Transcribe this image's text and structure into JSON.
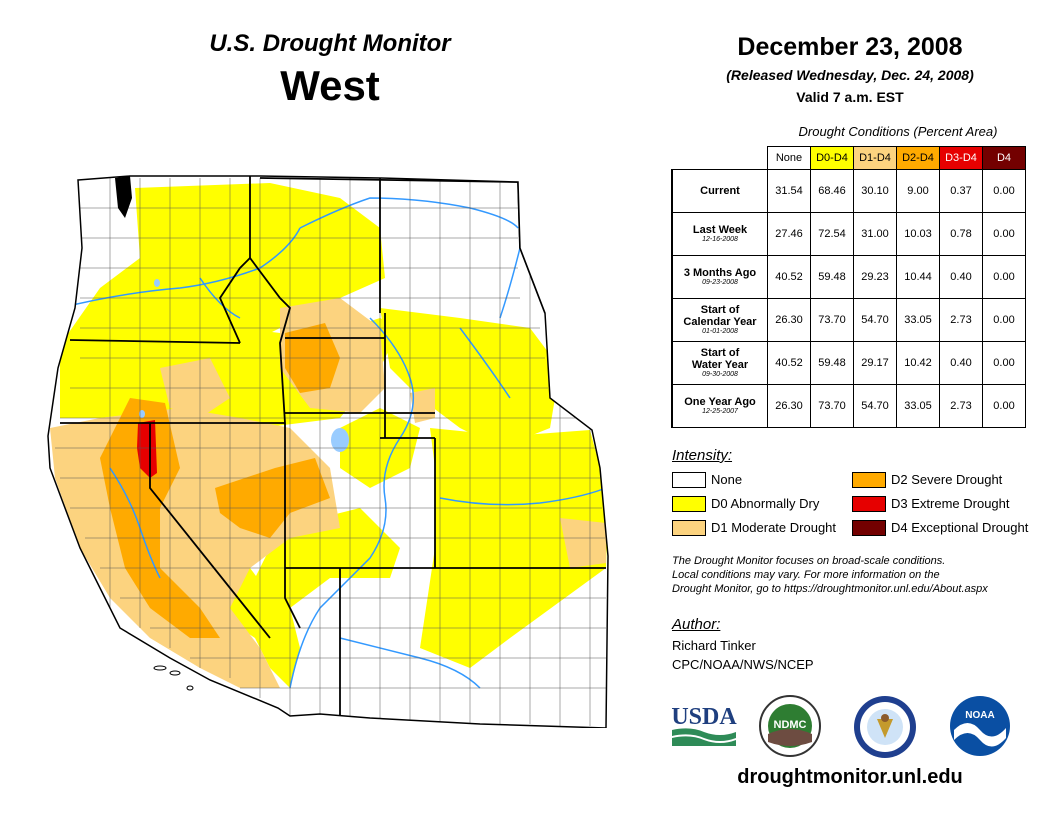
{
  "header": {
    "title": "U.S. Drought Monitor",
    "region": "West",
    "date": "December 23, 2008",
    "released": "(Released Wednesday, Dec. 24, 2008)",
    "valid": "Valid 7 a.m. EST"
  },
  "table": {
    "caption": "Drought Conditions (Percent Area)",
    "columns": [
      "None",
      "D0-D4",
      "D1-D4",
      "D2-D4",
      "D3-D4",
      "D4"
    ],
    "column_colors": [
      "#ffffff",
      "#ffff00",
      "#fcd37f",
      "#ffaa00",
      "#e60000",
      "#730000"
    ],
    "rows": [
      {
        "label": "Current",
        "label2": "",
        "sub": "",
        "values": [
          "31.54",
          "68.46",
          "30.10",
          "9.00",
          "0.37",
          "0.00"
        ]
      },
      {
        "label": "Last Week",
        "label2": "",
        "sub": "12-16-2008",
        "values": [
          "27.46",
          "72.54",
          "31.00",
          "10.03",
          "0.78",
          "0.00"
        ]
      },
      {
        "label": "3 Months Ago",
        "label2": "",
        "sub": "09-23-2008",
        "values": [
          "40.52",
          "59.48",
          "29.23",
          "10.44",
          "0.40",
          "0.00"
        ]
      },
      {
        "label": "Start of",
        "label2": "Calendar Year",
        "sub": "01-01-2008",
        "values": [
          "26.30",
          "73.70",
          "54.70",
          "33.05",
          "2.73",
          "0.00"
        ]
      },
      {
        "label": "Start of",
        "label2": "Water Year",
        "sub": "09-30-2008",
        "values": [
          "40.52",
          "59.48",
          "29.17",
          "10.42",
          "0.40",
          "0.00"
        ]
      },
      {
        "label": "One Year Ago",
        "label2": "",
        "sub": "12-25-2007",
        "values": [
          "26.30",
          "73.70",
          "54.70",
          "33.05",
          "2.73",
          "0.00"
        ]
      }
    ]
  },
  "legend": {
    "title": "Intensity:",
    "items": [
      {
        "label": "None",
        "color": "#ffffff"
      },
      {
        "label": "D0 Abnormally Dry",
        "color": "#ffff00"
      },
      {
        "label": "D1 Moderate Drought",
        "color": "#fcd37f"
      },
      {
        "label": "D2 Severe Drought",
        "color": "#ffaa00"
      },
      {
        "label": "D3 Extreme Drought",
        "color": "#e60000"
      },
      {
        "label": "D4 Exceptional Drought",
        "color": "#730000"
      }
    ]
  },
  "note": {
    "line1": "The Drought Monitor focuses on broad-scale conditions.",
    "line2": "Local conditions may vary. For more information on the",
    "line3": "Drought Monitor, go to https://droughtmonitor.unl.edu/About.aspx"
  },
  "author": {
    "title": "Author:",
    "name": "Richard Tinker",
    "org": "CPC/NOAA/NWS/NCEP"
  },
  "logos": {
    "usda": "USDA",
    "ndmc": "NDMC",
    "noaa": "NOAA"
  },
  "footer": {
    "url": "droughtmonitor.unl.edu"
  },
  "colors": {
    "none": "#ffffff",
    "d0": "#ffff00",
    "d1": "#fcd37f",
    "d2": "#ffaa00",
    "d3": "#e60000",
    "d4": "#730000",
    "border": "#000000",
    "river": "#3399ff",
    "lake": "#99ccff"
  }
}
